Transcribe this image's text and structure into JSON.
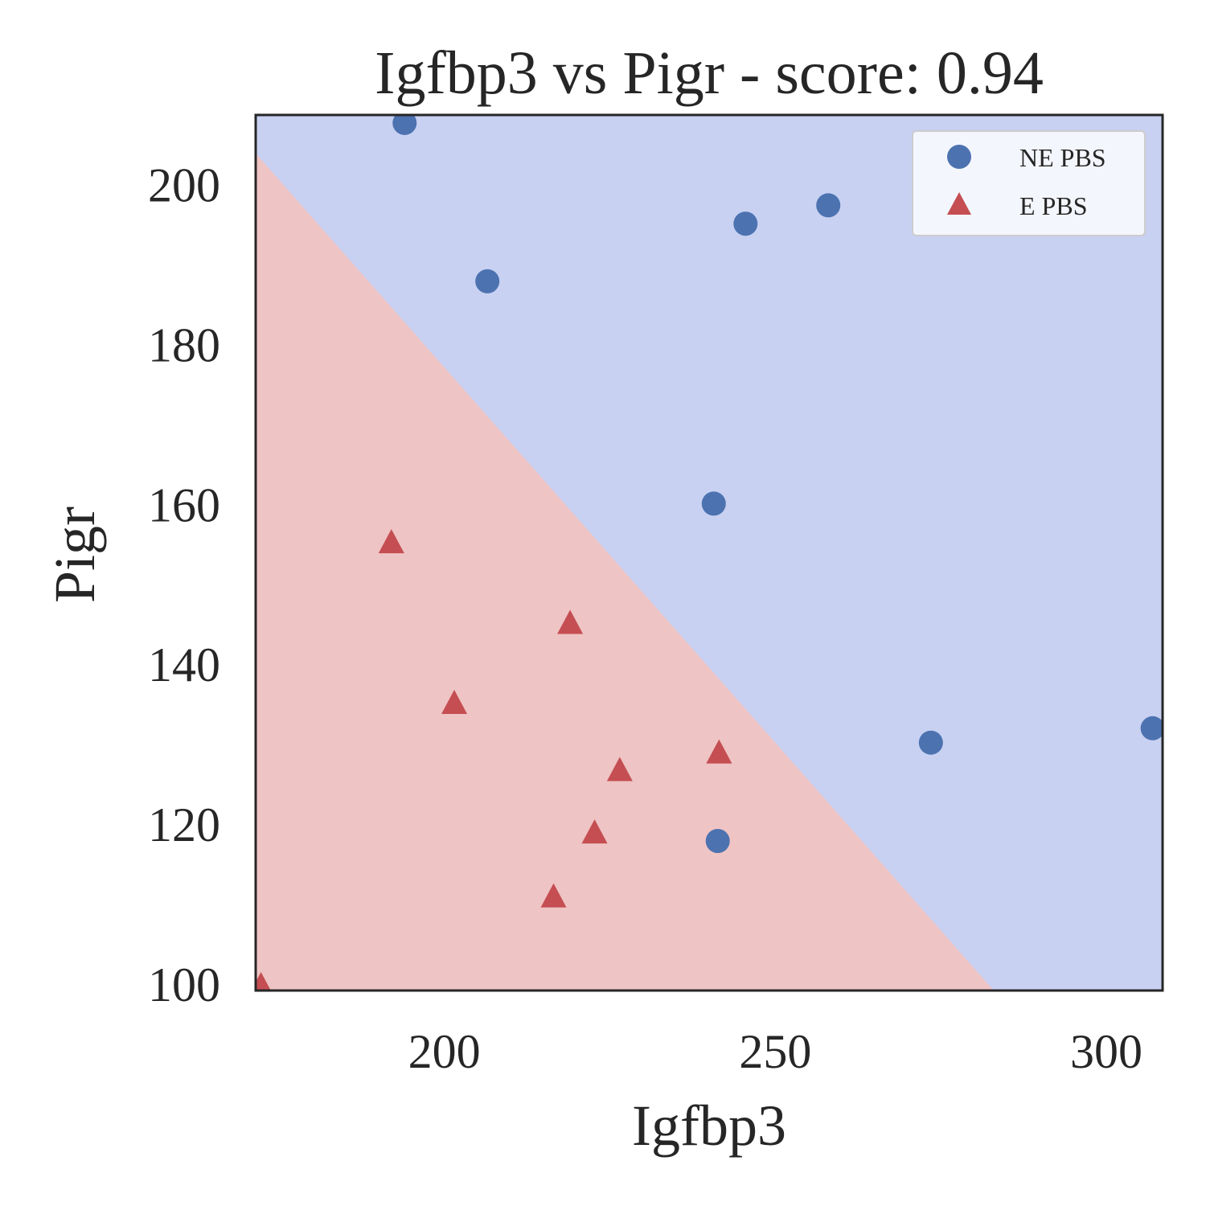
{
  "chart_data": {
    "type": "scatter",
    "title": "Igfbp3 vs Pigr - score: 0.94",
    "xlabel": "Igfbp3",
    "ylabel": "Pigr",
    "xlim": [
      171.5,
      308.5
    ],
    "ylim": [
      99.2,
      208.7
    ],
    "xticks": [
      200,
      250,
      300
    ],
    "yticks": [
      100,
      120,
      140,
      160,
      180,
      200
    ],
    "xtick_labels": [
      "200",
      "250",
      "300"
    ],
    "ytick_labels": [
      "100",
      "120",
      "140",
      "160",
      "180",
      "200"
    ],
    "grid": false,
    "legend_position": "top-right",
    "decision_boundary": {
      "points": [
        [
          171.5,
          203.9
        ],
        [
          283.0,
          99.2
        ]
      ],
      "color_lower": "#efc4c4",
      "color_upper": "#c8d1f2"
    },
    "series": [
      {
        "name": "NE PBS",
        "marker": "circle",
        "color": "#4c72b0",
        "points": [
          [
            194,
            207.7
          ],
          [
            206.5,
            187.9
          ],
          [
            245.5,
            195.1
          ],
          [
            258,
            197.4
          ],
          [
            240.7,
            160.1
          ],
          [
            241.3,
            117.9
          ],
          [
            273.5,
            130.2
          ],
          [
            307,
            132.0
          ]
        ]
      },
      {
        "name": "E PBS",
        "marker": "triangle",
        "color": "#c44e52",
        "points": [
          [
            192,
            155.2
          ],
          [
            219,
            145.1
          ],
          [
            201.5,
            135.1
          ],
          [
            241.5,
            128.9
          ],
          [
            226.5,
            126.7
          ],
          [
            222.7,
            118.9
          ],
          [
            216.5,
            110.9
          ],
          [
            172.3,
            99.8
          ]
        ]
      }
    ]
  }
}
